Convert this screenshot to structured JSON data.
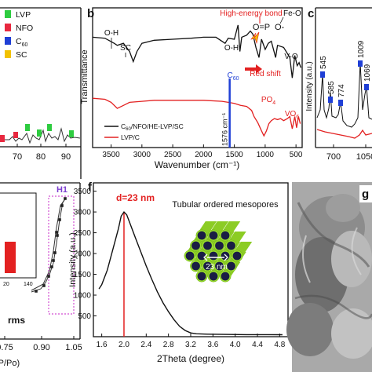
{
  "chart_data": [
    {
      "panel": "a",
      "type": "line",
      "legend": [
        {
          "label": "LVP",
          "color": "#2ecc40"
        },
        {
          "label": "NFO",
          "color": "#e8283f"
        },
        {
          "label": "C60",
          "color": "#1f3fd6"
        },
        {
          "label": "SC",
          "color": "#f2c200"
        }
      ],
      "x_ticks": [
        "70",
        "80",
        "90"
      ],
      "grid": false
    },
    {
      "panel": "b",
      "type": "line",
      "xlabel": "Wavenumber (cm⁻¹)",
      "ylabel": "Transmittance",
      "x_ticks": [
        "3500",
        "3000",
        "2500",
        "2000",
        "1500",
        "1000",
        "500"
      ],
      "xlim": [
        3800,
        400
      ],
      "series": [
        {
          "name": "C60/NFO/HE-LVP/SC",
          "color": "#111111",
          "points": [
            [
              3800,
              0.8
            ],
            [
              3600,
              0.79
            ],
            [
              3450,
              0.74
            ],
            [
              3400,
              0.72
            ],
            [
              3300,
              0.74
            ],
            [
              3200,
              0.66
            ],
            [
              3140,
              0.56
            ],
            [
              3080,
              0.66
            ],
            [
              3000,
              0.74
            ],
            [
              2800,
              0.77
            ],
            [
              2500,
              0.78
            ],
            [
              2200,
              0.79
            ],
            [
              2000,
              0.8
            ],
            [
              1800,
              0.8
            ],
            [
              1650,
              0.74
            ],
            [
              1600,
              0.79
            ],
            [
              1500,
              0.78
            ],
            [
              1440,
              0.92
            ],
            [
              1410,
              0.66
            ],
            [
              1380,
              0.8
            ],
            [
              1300,
              0.82
            ],
            [
              1240,
              0.86
            ],
            [
              1200,
              0.83
            ],
            [
              1150,
              0.7
            ],
            [
              1100,
              0.6
            ],
            [
              1060,
              0.78
            ],
            [
              1000,
              0.68
            ],
            [
              950,
              0.74
            ],
            [
              900,
              0.76
            ],
            [
              830,
              0.6
            ],
            [
              800,
              0.72
            ],
            [
              700,
              0.7
            ],
            [
              600,
              0.6
            ],
            [
              560,
              0.4
            ],
            [
              520,
              0.62
            ],
            [
              480,
              0.52
            ],
            [
              450,
              0.55
            ],
            [
              420,
              0.5
            ]
          ]
        },
        {
          "name": "LVP/C",
          "color": "#e32121",
          "points": [
            [
              3800,
              0.2
            ],
            [
              3600,
              0.19
            ],
            [
              3500,
              0.16
            ],
            [
              3400,
              0.1
            ],
            [
              3300,
              0.13
            ],
            [
              3200,
              0.16
            ],
            [
              3000,
              0.17
            ],
            [
              2800,
              0.18
            ],
            [
              2500,
              0.18
            ],
            [
              2000,
              0.18
            ],
            [
              1700,
              0.17
            ],
            [
              1600,
              0.16
            ],
            [
              1500,
              0.15
            ],
            [
              1400,
              0.13
            ],
            [
              1300,
              0.12
            ],
            [
              1220,
              0.08
            ],
            [
              1180,
              0.02
            ],
            [
              1120,
              -0.04
            ],
            [
              1060,
              -0.12
            ],
            [
              1020,
              -0.17
            ],
            [
              980,
              -0.12
            ],
            [
              940,
              -0.05
            ],
            [
              900,
              -0.02
            ],
            [
              850,
              0.0
            ],
            [
              800,
              -0.01
            ],
            [
              750,
              0.0
            ],
            [
              700,
              -0.02
            ],
            [
              640,
              0.0
            ],
            [
              600,
              0.02
            ],
            [
              560,
              -0.1
            ],
            [
              520,
              0.02
            ],
            [
              490,
              -0.09
            ],
            [
              460,
              0.02
            ],
            [
              430,
              -0.05
            ]
          ]
        }
      ],
      "marker_line": {
        "x": 1576,
        "label": "1576 cm⁻¹"
      },
      "annotations": [
        "O-H",
        "SC",
        "O-H",
        "C60",
        "High-energy bond",
        "O=P",
        "O-",
        "Fe-O",
        "V-O",
        "Red shift",
        "PO4",
        "VO6"
      ]
    },
    {
      "panel": "c",
      "type": "line",
      "ylabel": "Intensity (a.u.)",
      "x_ticks": [
        "700",
        "1050"
      ],
      "peak_labels": [
        "545",
        "585",
        "774",
        "1009",
        "1069"
      ]
    },
    {
      "panel": "e",
      "type": "scatter",
      "x_ticks": [
        "0.75",
        "0.90",
        "1.05"
      ],
      "annotations": [
        "H1",
        "rms"
      ],
      "inset_ticks": [
        "20",
        "140"
      ],
      "bottom_label": "(P/Po)"
    },
    {
      "panel": "f",
      "type": "line",
      "xlabel": "2Theta (degree)",
      "ylabel": "Intensity (a.u.)",
      "x_ticks": [
        "1.6",
        "2.0",
        "2.4",
        "2.8",
        "3.2",
        "3.6",
        "4.0",
        "4.4",
        "4.8"
      ],
      "y_ticks": [
        "500",
        "1000",
        "1500",
        "2000",
        "2500",
        "3000",
        "3500"
      ],
      "xlim": [
        1.45,
        4.95
      ],
      "ylim": [
        0,
        3700
      ],
      "series": [
        {
          "name": "pattern",
          "color": "#111111",
          "points": [
            [
              1.55,
              1150
            ],
            [
              1.6,
              1250
            ],
            [
              1.7,
              1600
            ],
            [
              1.8,
              2100
            ],
            [
              1.9,
              2600
            ],
            [
              1.95,
              2900
            ],
            [
              2.0,
              3000
            ],
            [
              2.05,
              2930
            ],
            [
              2.1,
              2750
            ],
            [
              2.2,
              2400
            ],
            [
              2.3,
              2050
            ],
            [
              2.4,
              1700
            ],
            [
              2.5,
              1380
            ],
            [
              2.6,
              1080
            ],
            [
              2.7,
              820
            ],
            [
              2.8,
              600
            ],
            [
              2.9,
              410
            ],
            [
              3.0,
              250
            ],
            [
              3.1,
              150
            ],
            [
              3.2,
              90
            ],
            [
              3.3,
              70
            ],
            [
              3.5,
              60
            ],
            [
              3.8,
              55
            ],
            [
              4.2,
              50
            ],
            [
              4.6,
              50
            ],
            [
              4.85,
              48
            ]
          ]
        }
      ],
      "vline": {
        "x": 2.0,
        "label": "d=23 nm",
        "color": "#e32121"
      },
      "annotations": [
        "Tubular ordered mesopores",
        "23 nm"
      ]
    }
  ],
  "labels": {
    "panel_b": "b",
    "panel_c": "c",
    "panel_f": "f",
    "panel_g": "g",
    "a_tick_70": "70",
    "a_tick_80": "80",
    "a_tick_90": "90",
    "e_h1": "H1",
    "e_rms": "rms",
    "e_xlabel": "(P/Po)",
    "e_t1": "0.75",
    "e_t2": "0.90",
    "e_t3": "1.05",
    "e_inset_t1": "20",
    "e_inset_t2": "140",
    "c_ylabel": "Intensity (a.u.)",
    "c_t1": "700",
    "c_t2": "1050"
  },
  "colors": {
    "red": "#e32121",
    "blue": "#1f3fd6",
    "green": "#2ecc40",
    "yellow": "#f2c200",
    "pink_box": "#d24fd2",
    "rod_green": "#9be22b",
    "rod_dark": "#1a1d44"
  }
}
